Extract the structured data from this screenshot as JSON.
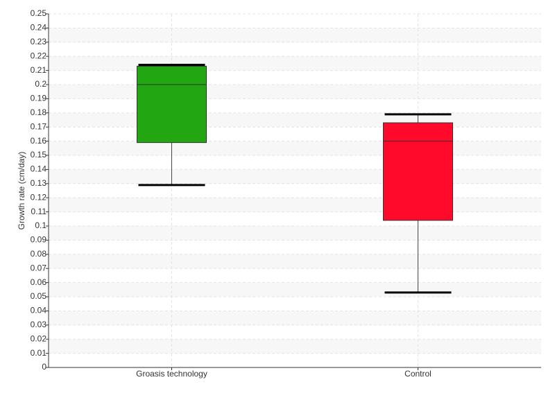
{
  "chart_data": {
    "type": "box",
    "ylabel": "Growth rate (cm/day)",
    "categories": [
      "Groasis technology",
      "Control"
    ],
    "boxes": [
      {
        "whislo": 0.129,
        "q1": 0.159,
        "med": 0.2,
        "q3": 0.213,
        "whishi": 0.214
      },
      {
        "whislo": 0.053,
        "q1": 0.104,
        "med": 0.16,
        "q3": 0.173,
        "whishi": 0.179
      }
    ],
    "colors": [
      "#22a612",
      "#ff0a2a"
    ],
    "ylim": [
      0,
      0.25
    ],
    "yticks": [
      0,
      0.01,
      0.02,
      0.03,
      0.04,
      0.05,
      0.06,
      0.07,
      0.08,
      0.09,
      0.1,
      0.11,
      0.12,
      0.13,
      0.14,
      0.15,
      0.16,
      0.17,
      0.18,
      0.19,
      0.2,
      0.21,
      0.22,
      0.23,
      0.24,
      0.25
    ],
    "grid": true
  }
}
